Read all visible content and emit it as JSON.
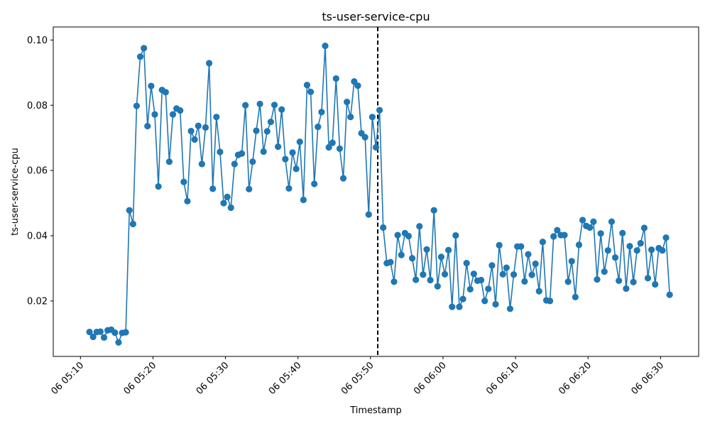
{
  "chart_data": {
    "type": "line",
    "title": "ts-user-service-cpu",
    "xlabel": "Timestamp",
    "ylabel": "ts-user-service-cpu",
    "x_tick_labels": [
      "06 05:10",
      "06 05:20",
      "06 05:30",
      "06 05:40",
      "06 05:50",
      "06 06:00",
      "06 06:10",
      "06 06:20",
      "06 06:30"
    ],
    "y_tick_labels": [
      "0.02",
      "0.04",
      "0.06",
      "0.08",
      "0.10"
    ],
    "y_ticks": [
      0.02,
      0.04,
      0.06,
      0.08,
      0.1
    ],
    "ylim": [
      0.003,
      0.104
    ],
    "xlim": [
      "06 05:06:15",
      "06 06:35:15"
    ],
    "series_color": "#1f77b4",
    "marker": "circle",
    "grid": false,
    "vline": {
      "x": "06 05:51:00",
      "style": "dashed",
      "color": "#000000"
    },
    "x": [
      "06 05:11:15",
      "06 05:11:45",
      "06 05:12:15",
      "06 05:12:45",
      "06 05:13:15",
      "06 05:13:45",
      "06 05:14:15",
      "06 05:14:45",
      "06 05:15:15",
      "06 05:15:45",
      "06 05:16:15",
      "06 05:16:45",
      "06 05:17:15",
      "06 05:17:45",
      "06 05:18:15",
      "06 05:18:45",
      "06 05:19:15",
      "06 05:19:45",
      "06 05:20:15",
      "06 05:20:45",
      "06 05:21:15",
      "06 05:21:45",
      "06 05:22:15",
      "06 05:22:45",
      "06 05:23:15",
      "06 05:23:45",
      "06 05:24:15",
      "06 05:24:45",
      "06 05:25:15",
      "06 05:25:45",
      "06 05:26:15",
      "06 05:26:45",
      "06 05:27:15",
      "06 05:27:45",
      "06 05:28:15",
      "06 05:28:45",
      "06 05:29:15",
      "06 05:29:45",
      "06 05:30:15",
      "06 05:30:45",
      "06 05:31:15",
      "06 05:31:45",
      "06 05:32:15",
      "06 05:32:45",
      "06 05:33:15",
      "06 05:33:45",
      "06 05:34:15",
      "06 05:34:45",
      "06 05:35:15",
      "06 05:35:45",
      "06 05:36:15",
      "06 05:36:45",
      "06 05:37:15",
      "06 05:37:45",
      "06 05:38:15",
      "06 05:38:45",
      "06 05:39:15",
      "06 05:39:45",
      "06 05:40:15",
      "06 05:40:45",
      "06 05:41:15",
      "06 05:41:45",
      "06 05:42:15",
      "06 05:42:45",
      "06 05:43:15",
      "06 05:43:45",
      "06 05:44:15",
      "06 05:44:45",
      "06 05:45:15",
      "06 05:45:45",
      "06 05:46:15",
      "06 05:46:45",
      "06 05:47:15",
      "06 05:47:45",
      "06 05:48:15",
      "06 05:48:45",
      "06 05:49:15",
      "06 05:49:45",
      "06 05:50:15",
      "06 05:50:45",
      "06 05:51:15",
      "06 05:51:45",
      "06 05:52:15",
      "06 05:52:45",
      "06 05:53:15",
      "06 05:53:45",
      "06 05:54:15",
      "06 05:54:45",
      "06 05:55:15",
      "06 05:55:45",
      "06 05:56:15",
      "06 05:56:45",
      "06 05:57:15",
      "06 05:57:45",
      "06 05:58:15",
      "06 05:58:45",
      "06 05:59:15",
      "06 05:59:45",
      "06 06:00:15",
      "06 06:00:45",
      "06 06:01:15",
      "06 06:01:45",
      "06 06:02:15",
      "06 06:02:45",
      "06 06:03:15",
      "06 06:03:45",
      "06 06:04:15",
      "06 06:04:45",
      "06 06:05:15",
      "06 06:05:45",
      "06 06:06:15",
      "06 06:06:45",
      "06 06:07:15",
      "06 06:07:45",
      "06 06:08:15",
      "06 06:08:45",
      "06 06:09:15",
      "06 06:09:45",
      "06 06:10:15",
      "06 06:10:45",
      "06 06:11:15",
      "06 06:11:45",
      "06 06:12:15",
      "06 06:12:45",
      "06 06:13:15",
      "06 06:13:45",
      "06 06:14:15",
      "06 06:14:45",
      "06 06:15:15",
      "06 06:15:45",
      "06 06:16:15",
      "06 06:16:45",
      "06 06:17:15",
      "06 06:17:45",
      "06 06:18:15",
      "06 06:18:45",
      "06 06:19:15",
      "06 06:19:45",
      "06 06:20:15",
      "06 06:20:45",
      "06 06:21:15",
      "06 06:21:45",
      "06 06:22:15",
      "06 06:22:45",
      "06 06:23:15",
      "06 06:23:45",
      "06 06:24:15",
      "06 06:24:45",
      "06 06:25:15",
      "06 06:25:45",
      "06 06:26:15",
      "06 06:26:45",
      "06 06:27:15",
      "06 06:27:45",
      "06 06:28:15",
      "06 06:28:45",
      "06 06:29:15",
      "06 06:29:45",
      "06 06:30:15",
      "06 06:30:45",
      "06 06:31:15"
    ],
    "values": [
      0.0105,
      0.009,
      0.0105,
      0.0106,
      0.0088,
      0.011,
      0.0112,
      0.0103,
      0.0073,
      0.0102,
      0.0104,
      0.0478,
      0.0436,
      0.0798,
      0.0949,
      0.0975,
      0.0736,
      0.0859,
      0.0772,
      0.0551,
      0.0847,
      0.084,
      0.0627,
      0.0772,
      0.079,
      0.0784,
      0.0565,
      0.0506,
      0.0721,
      0.0695,
      0.0737,
      0.062,
      0.0732,
      0.0929,
      0.0544,
      0.0764,
      0.0657,
      0.05,
      0.0519,
      0.0486,
      0.062,
      0.0648,
      0.0652,
      0.08,
      0.0543,
      0.0627,
      0.0722,
      0.0804,
      0.0658,
      0.072,
      0.0749,
      0.0801,
      0.0673,
      0.0787,
      0.0635,
      0.0545,
      0.0655,
      0.0605,
      0.0688,
      0.051,
      0.0862,
      0.0841,
      0.0559,
      0.0734,
      0.0779,
      0.0982,
      0.0671,
      0.0685,
      0.0882,
      0.0667,
      0.0576,
      0.081,
      0.0764,
      0.0873,
      0.086,
      0.0714,
      0.0702,
      0.0465,
      0.0764,
      0.0671,
      0.0785,
      0.0425,
      0.0316,
      0.0319,
      0.0259,
      0.0402,
      0.0341,
      0.0408,
      0.0399,
      0.0331,
      0.0265,
      0.0429,
      0.0281,
      0.0358,
      0.0264,
      0.0478,
      0.0245,
      0.0335,
      0.0282,
      0.0356,
      0.0182,
      0.0401,
      0.0182,
      0.0206,
      0.0316,
      0.0236,
      0.0283,
      0.0262,
      0.0264,
      0.02,
      0.0237,
      0.0309,
      0.019,
      0.0371,
      0.0282,
      0.0302,
      0.0176,
      0.0281,
      0.0367,
      0.0367,
      0.026,
      0.0343,
      0.028,
      0.0314,
      0.023,
      0.0381,
      0.0202,
      0.02,
      0.0398,
      0.0417,
      0.0402,
      0.0402,
      0.0259,
      0.0322,
      0.0212,
      0.0372,
      0.0448,
      0.043,
      0.0425,
      0.0443,
      0.0266,
      0.0407,
      0.029,
      0.0355,
      0.0443,
      0.0333,
      0.0262,
      0.0408,
      0.0238,
      0.0368,
      0.0258,
      0.0355,
      0.0377,
      0.0424,
      0.027,
      0.0357,
      0.0251,
      0.0362,
      0.0355,
      0.0394,
      0.0219
    ]
  }
}
